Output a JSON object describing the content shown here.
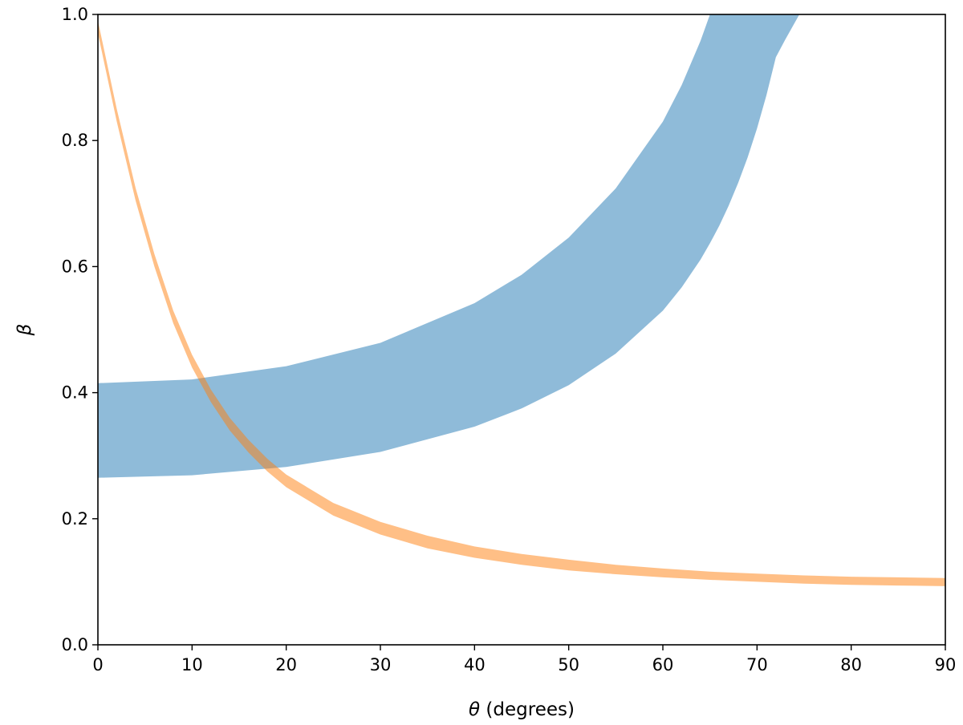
{
  "chart_data": {
    "type": "area",
    "title": "",
    "xlabel_symbol": "θ",
    "xlabel_text": " (degrees)",
    "ylabel_symbol": "β",
    "xlim": [
      0,
      90
    ],
    "ylim": [
      0,
      1.0
    ],
    "xticks": [
      0,
      10,
      20,
      30,
      40,
      50,
      60,
      70,
      80,
      90
    ],
    "yticks": [
      0.0,
      0.2,
      0.4,
      0.6,
      0.8,
      1.0
    ],
    "ytick_labels": [
      "0.0",
      "0.2",
      "0.4",
      "0.6",
      "0.8",
      "1.0"
    ],
    "grid": false,
    "legend": "none",
    "series": [
      {
        "color": "#1f77b4",
        "opacity": 0.5,
        "x": [
          0,
          10,
          20,
          30,
          40,
          45,
          50,
          55,
          60,
          62,
          64,
          65,
          66,
          67,
          68,
          69,
          70,
          71,
          72,
          73,
          74.5
        ],
        "lower": [
          0.265,
          0.269,
          0.282,
          0.306,
          0.346,
          0.375,
          0.412,
          0.462,
          0.53,
          0.567,
          0.611,
          0.637,
          0.665,
          0.697,
          0.733,
          0.773,
          0.819,
          0.872,
          0.932,
          0.96,
          1.0
        ],
        "upper": [
          0.415,
          0.421,
          0.442,
          0.479,
          0.542,
          0.587,
          0.646,
          0.724,
          0.83,
          0.888,
          0.958,
          1.0,
          1.0,
          1.0,
          1.0,
          1.0,
          1.0,
          1.0,
          1.0,
          1.0,
          1.0
        ]
      },
      {
        "color": "#ff7f0e",
        "opacity": 0.5,
        "x": [
          0,
          2,
          4,
          6,
          8,
          10,
          12,
          14,
          16,
          18,
          20,
          25,
          30,
          35,
          40,
          45,
          50,
          55,
          60,
          65,
          70,
          75,
          80,
          85,
          90
        ],
        "lower": [
          0.97,
          0.83,
          0.705,
          0.6,
          0.51,
          0.44,
          0.385,
          0.34,
          0.305,
          0.275,
          0.25,
          0.205,
          0.175,
          0.153,
          0.138,
          0.127,
          0.118,
          0.112,
          0.107,
          0.103,
          0.1,
          0.097,
          0.095,
          0.094,
          0.093
        ],
        "upper": [
          0.99,
          0.85,
          0.725,
          0.62,
          0.53,
          0.46,
          0.405,
          0.36,
          0.325,
          0.295,
          0.27,
          0.225,
          0.195,
          0.173,
          0.156,
          0.144,
          0.135,
          0.127,
          0.121,
          0.116,
          0.113,
          0.11,
          0.108,
          0.107,
          0.106
        ]
      }
    ]
  }
}
